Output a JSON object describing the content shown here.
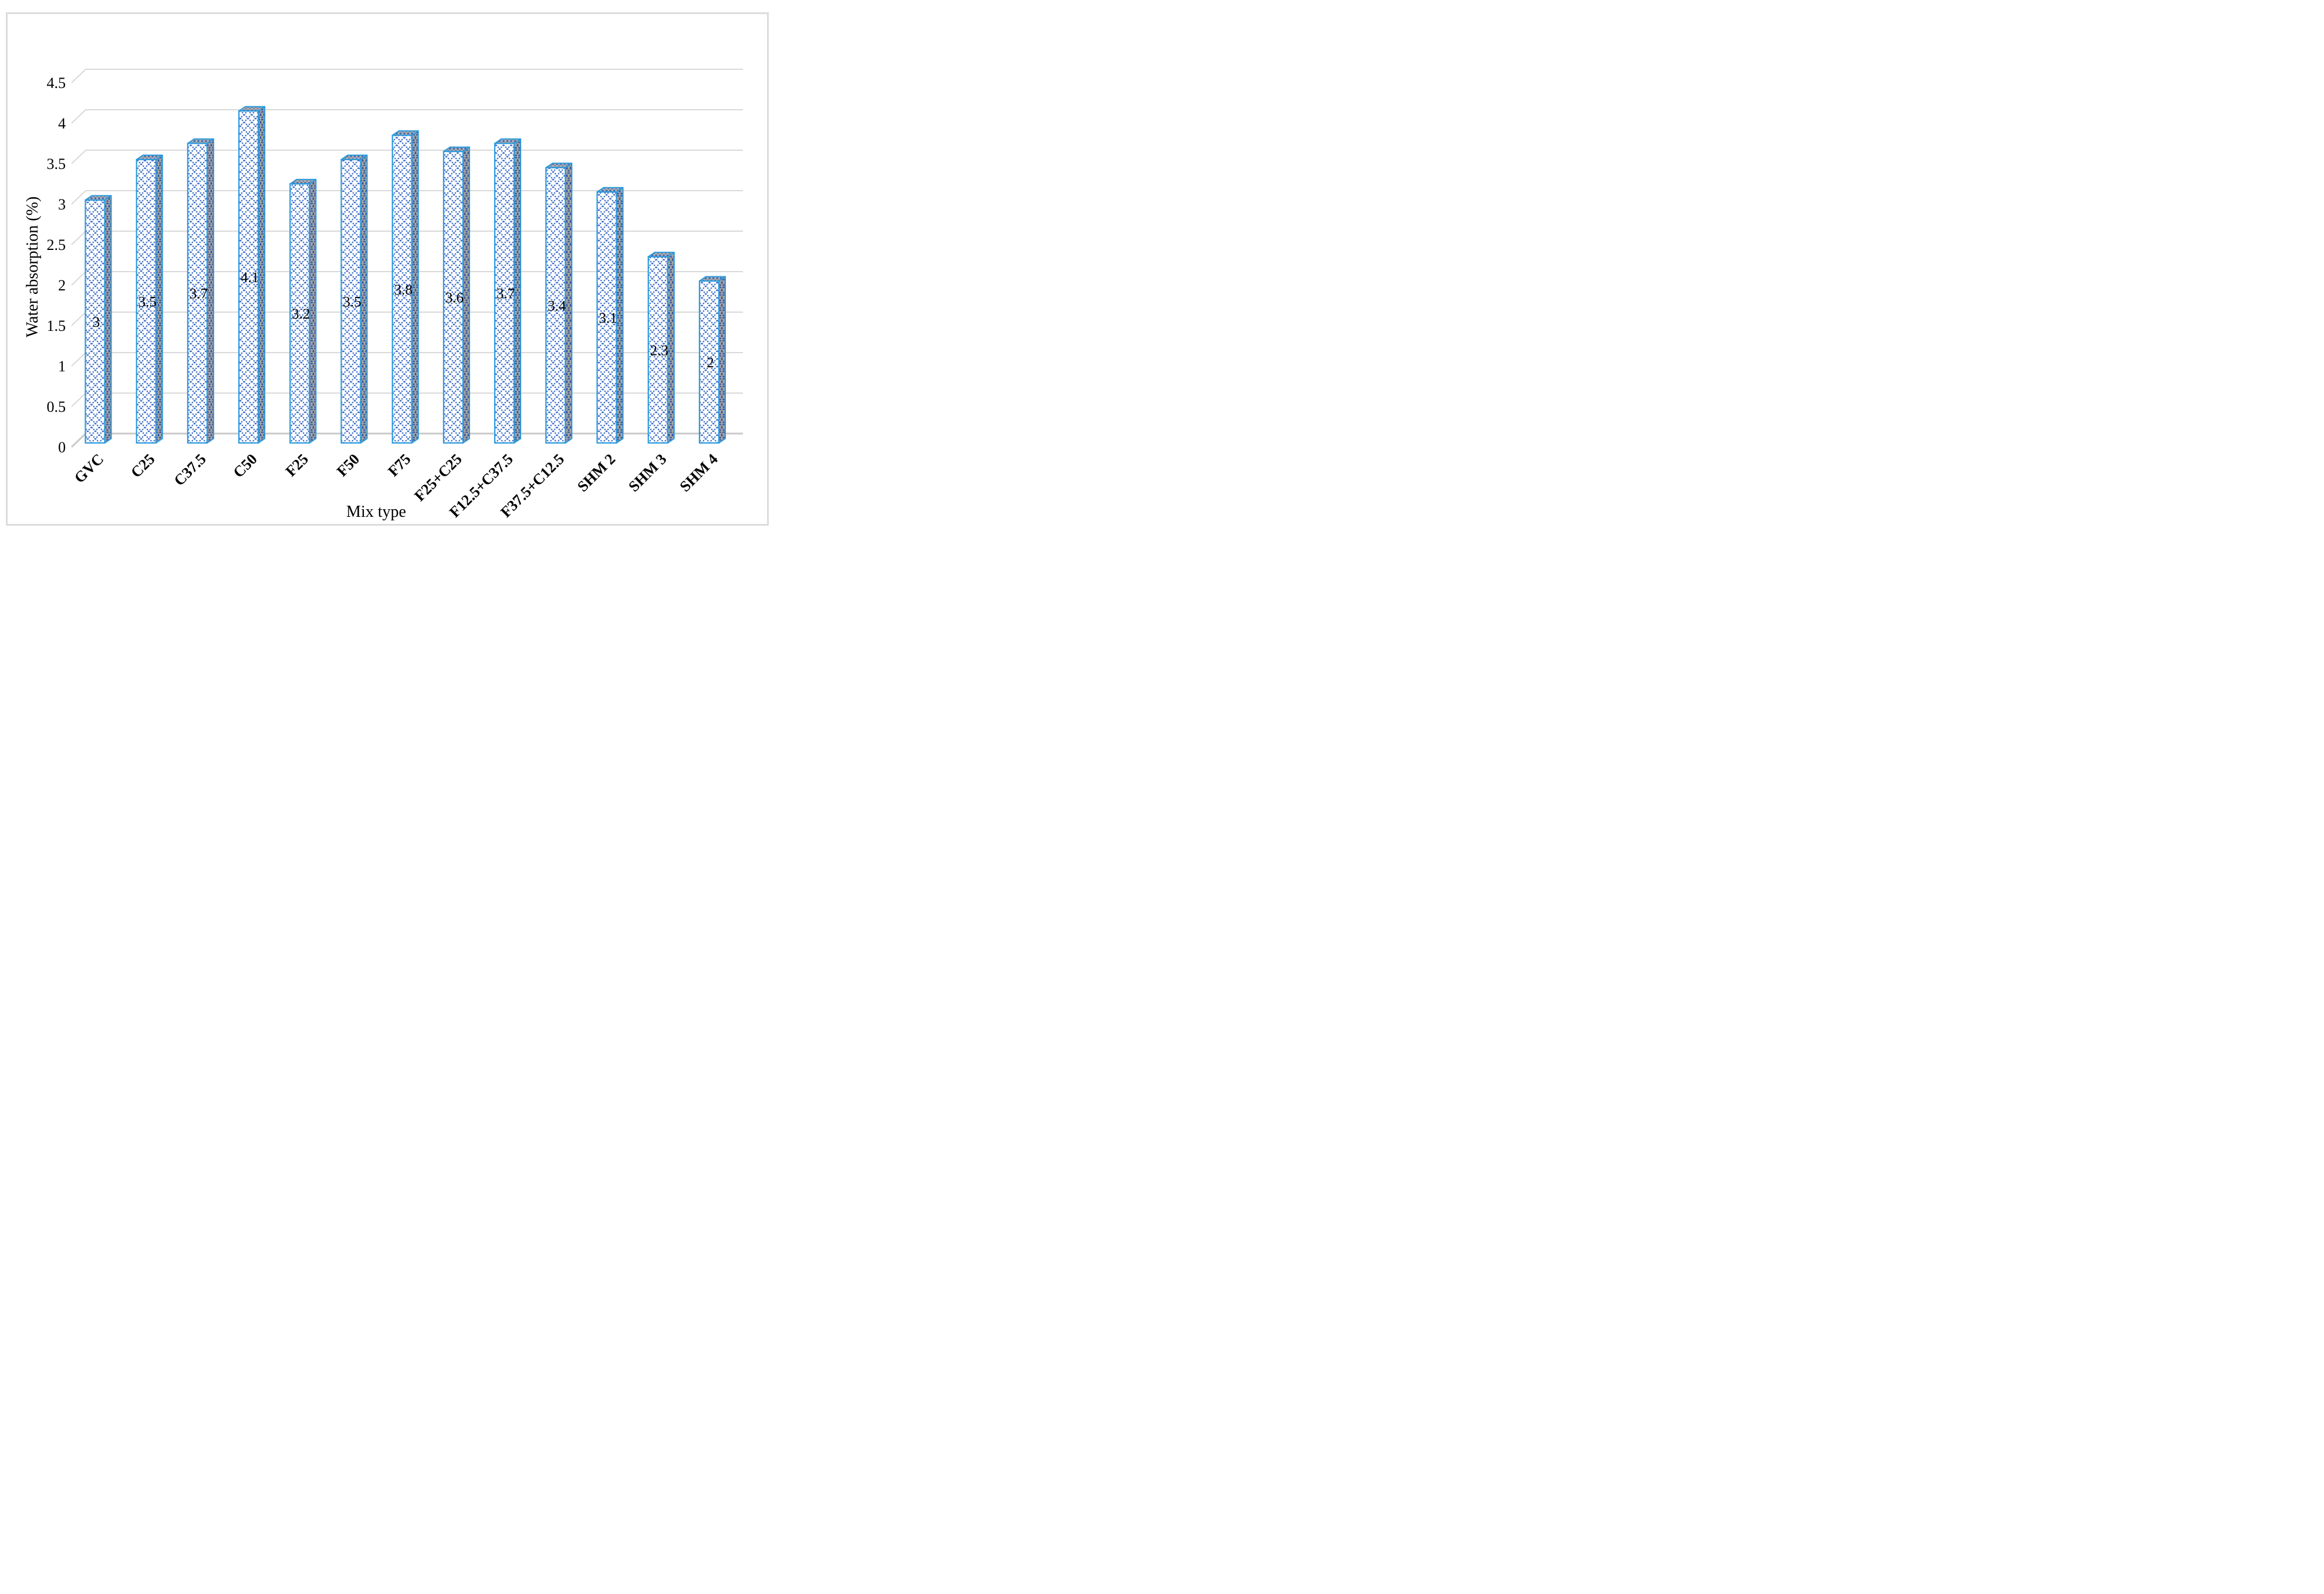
{
  "figure": {
    "background": "#ffffff",
    "frame_color": "#dcdcdc"
  },
  "chart_data": {
    "type": "bar",
    "style": "3d-column-crosshatch",
    "title": "",
    "xlabel": "Mix type",
    "ylabel": "Water absorption (%)",
    "categories": [
      "GVC",
      "C25",
      "C37.5",
      "C50",
      "F25",
      "F50",
      "F75",
      "F25+C25",
      "F12.5+C37.5",
      "F37.5+C12.5",
      "SHM 2",
      "SHM 3",
      "SHM 4"
    ],
    "values": [
      3,
      3.5,
      3.7,
      4.1,
      3.2,
      3.5,
      3.8,
      3.6,
      3.7,
      3.4,
      3.1,
      2.3,
      2
    ],
    "data_labels": [
      "3",
      "3.5",
      "3.7",
      "4.1",
      "3.2",
      "3.5",
      "3.8",
      "3.6",
      "3.7",
      "3.4",
      "3.1",
      "2.3",
      "2"
    ],
    "yticks": [
      "0",
      "0.5",
      "1",
      "1.5",
      "2",
      "2.5",
      "3",
      "3.5",
      "4",
      "4.5"
    ],
    "ylim": [
      0,
      4.5
    ],
    "ytick_step": 0.5,
    "grid": true,
    "legend": null,
    "data_label_position": "center",
    "category_label_rotation_deg": 45,
    "colors": {
      "bar_outline": "#2b9add",
      "bar_hatch": "#3a6cc8",
      "bar_face_bg": "#ffffff",
      "side_bg": "#a8a6a2",
      "side_hatch": "#35549b",
      "top_bg": "#b2aeab",
      "top_hatch": "#3a64b4",
      "grid": "#d9d9d9",
      "floor": "#c9c9c9",
      "text": "#000000"
    }
  }
}
